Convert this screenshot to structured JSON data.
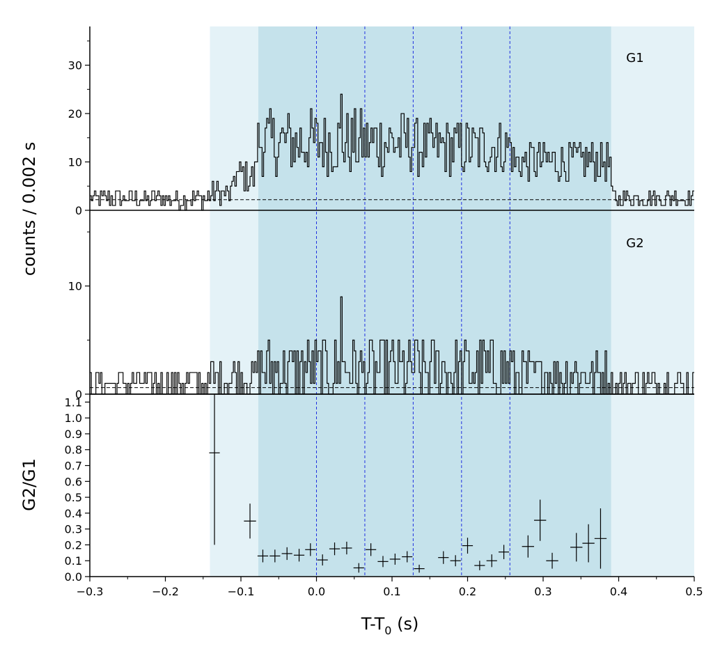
{
  "chart_data": {
    "type": "histogram",
    "xlabel_base": "T-T",
    "xlabel_sub": "0",
    "xlabel_unit": " (s)",
    "xlim": [
      -0.3,
      0.5
    ],
    "xticks": [
      -0.3,
      -0.2,
      -0.1,
      0.0,
      0.1,
      0.2,
      0.3,
      0.4,
      0.5
    ],
    "shared_ylabel": "counts /  0.002 s",
    "background_region": {
      "start": -0.141,
      "end": 0.39,
      "color": "#e4f2f7"
    },
    "burst_region": {
      "start": -0.077,
      "end": 0.39,
      "color": "#c5e2eb"
    },
    "slice_boundaries": [
      0.0,
      0.064,
      0.128,
      0.192,
      0.256
    ],
    "slice_line_color": "#1f2fe0",
    "panels": [
      {
        "label": "G1",
        "ylim": [
          0,
          38
        ],
        "yticks": [
          0,
          10,
          20,
          30
        ],
        "background_level": 2.2,
        "segments": [
          {
            "x0": -0.3,
            "x1": -0.145,
            "level": 2.4,
            "amp": 2.0
          },
          {
            "x0": -0.145,
            "x1": -0.11,
            "level": 3.5,
            "amp": 2.5
          },
          {
            "x0": -0.11,
            "x1": -0.08,
            "level": 7,
            "amp": 4
          },
          {
            "x0": -0.08,
            "x1": 0.0,
            "level": 14,
            "amp": 7
          },
          {
            "x0": 0.0,
            "x1": 0.13,
            "level": 14,
            "amp": 7
          },
          {
            "x0": 0.13,
            "x1": 0.26,
            "level": 13,
            "amp": 6
          },
          {
            "x0": 0.26,
            "x1": 0.39,
            "level": 10,
            "amp": 4.5
          },
          {
            "x0": 0.39,
            "x1": 0.5,
            "level": 2.6,
            "amp": 2.0
          }
        ],
        "peak_value": 24
      },
      {
        "label": "G2",
        "ylim": [
          0,
          17
        ],
        "yticks": [
          0,
          10
        ],
        "background_level": 0.6,
        "segments": [
          {
            "x0": -0.3,
            "x1": -0.14,
            "level": 1.0,
            "amp": 1.6
          },
          {
            "x0": -0.14,
            "x1": -0.08,
            "level": 1.5,
            "amp": 2.0
          },
          {
            "x0": -0.08,
            "x1": 0.26,
            "level": 2.2,
            "amp": 3.0
          },
          {
            "x0": 0.26,
            "x1": 0.39,
            "level": 1.7,
            "amp": 2.2
          },
          {
            "x0": 0.39,
            "x1": 0.5,
            "level": 0.9,
            "amp": 1.5
          }
        ],
        "peak_value": 9
      }
    ],
    "ratio_panel": {
      "ylabel": "G2/G1",
      "ylim": [
        0.0,
        1.15
      ],
      "yticks": [
        0.0,
        0.1,
        0.2,
        0.3,
        0.4,
        0.5,
        0.6,
        0.7,
        0.8,
        0.9,
        1.0,
        1.1
      ],
      "points": [
        {
          "x": -0.135,
          "y": 0.78,
          "xerr": 0.007,
          "yerr": 0.58
        },
        {
          "x": -0.088,
          "y": 0.35,
          "xerr": 0.008,
          "yerr": 0.11
        },
        {
          "x": -0.071,
          "y": 0.13,
          "xerr": 0.007,
          "yerr": 0.04
        },
        {
          "x": -0.055,
          "y": 0.13,
          "xerr": 0.007,
          "yerr": 0.04
        },
        {
          "x": -0.039,
          "y": 0.145,
          "xerr": 0.007,
          "yerr": 0.04
        },
        {
          "x": -0.023,
          "y": 0.135,
          "xerr": 0.007,
          "yerr": 0.04
        },
        {
          "x": -0.008,
          "y": 0.17,
          "xerr": 0.007,
          "yerr": 0.04
        },
        {
          "x": 0.008,
          "y": 0.105,
          "xerr": 0.007,
          "yerr": 0.035
        },
        {
          "x": 0.024,
          "y": 0.175,
          "xerr": 0.007,
          "yerr": 0.04
        },
        {
          "x": 0.04,
          "y": 0.18,
          "xerr": 0.007,
          "yerr": 0.04
        },
        {
          "x": 0.056,
          "y": 0.055,
          "xerr": 0.007,
          "yerr": 0.03
        },
        {
          "x": 0.072,
          "y": 0.17,
          "xerr": 0.007,
          "yerr": 0.04
        },
        {
          "x": 0.088,
          "y": 0.095,
          "xerr": 0.007,
          "yerr": 0.035
        },
        {
          "x": 0.104,
          "y": 0.11,
          "xerr": 0.007,
          "yerr": 0.035
        },
        {
          "x": 0.12,
          "y": 0.125,
          "xerr": 0.007,
          "yerr": 0.035
        },
        {
          "x": 0.136,
          "y": 0.05,
          "xerr": 0.007,
          "yerr": 0.025
        },
        {
          "x": 0.168,
          "y": 0.12,
          "xerr": 0.007,
          "yerr": 0.04
        },
        {
          "x": 0.184,
          "y": 0.1,
          "xerr": 0.007,
          "yerr": 0.035
        },
        {
          "x": 0.2,
          "y": 0.195,
          "xerr": 0.007,
          "yerr": 0.05
        },
        {
          "x": 0.216,
          "y": 0.07,
          "xerr": 0.007,
          "yerr": 0.03
        },
        {
          "x": 0.232,
          "y": 0.1,
          "xerr": 0.007,
          "yerr": 0.04
        },
        {
          "x": 0.248,
          "y": 0.155,
          "xerr": 0.007,
          "yerr": 0.045
        },
        {
          "x": 0.28,
          "y": 0.19,
          "xerr": 0.008,
          "yerr": 0.07
        },
        {
          "x": 0.296,
          "y": 0.355,
          "xerr": 0.008,
          "yerr": 0.13
        },
        {
          "x": 0.312,
          "y": 0.1,
          "xerr": 0.008,
          "yerr": 0.05
        },
        {
          "x": 0.344,
          "y": 0.185,
          "xerr": 0.008,
          "yerr": 0.09
        },
        {
          "x": 0.36,
          "y": 0.21,
          "xerr": 0.008,
          "yerr": 0.12
        },
        {
          "x": 0.376,
          "y": 0.24,
          "xerr": 0.008,
          "yerr": 0.19
        }
      ]
    }
  }
}
